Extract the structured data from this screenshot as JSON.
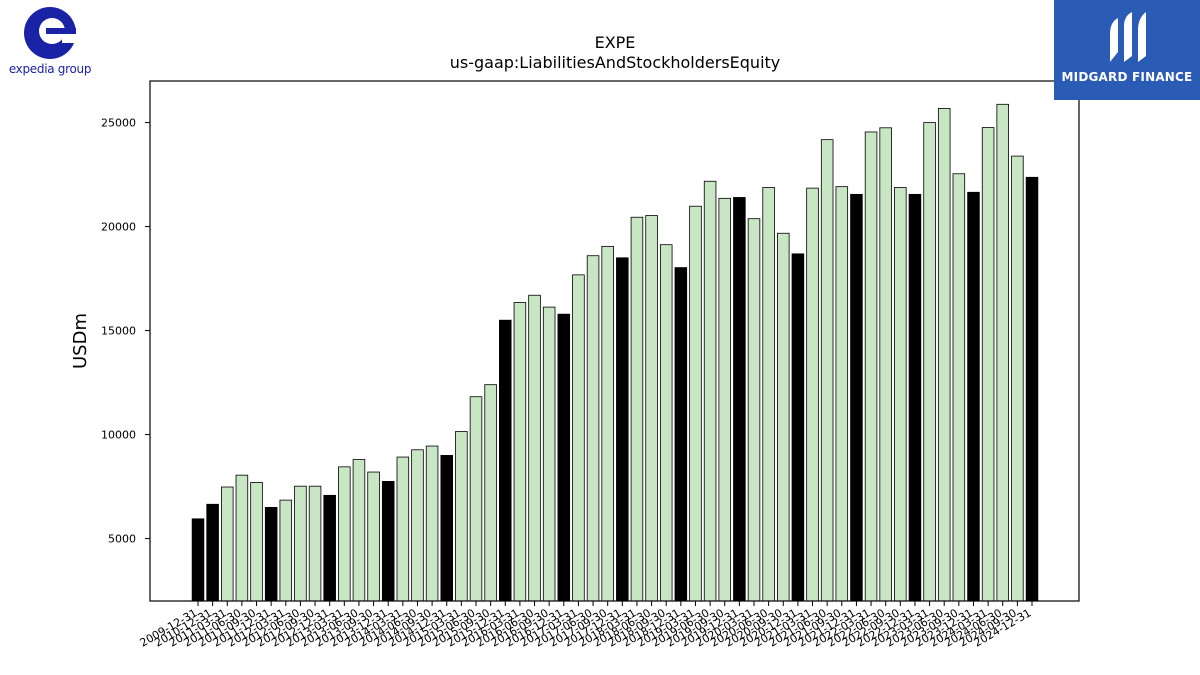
{
  "logos": {
    "left_text": "expedia group",
    "right_text": "MIDGARD FINANCE"
  },
  "colors": {
    "bar_light": "#c9e6c4",
    "bar_dark": "#000000",
    "expedia_blue": "#1a23a6",
    "midgard_bg": "#2a5bb5"
  },
  "chart_data": {
    "type": "bar",
    "title": "EXPE",
    "subtitle": "us-gaap:LiabilitiesAndStockholdersEquity",
    "xlabel": "",
    "ylabel": "USDm",
    "ylim": [
      2000,
      27000
    ],
    "yticks": [
      5000,
      10000,
      15000,
      20000,
      25000
    ],
    "grid": false,
    "categories": [
      "2009-12-31",
      "2010-12-31",
      "2011-03-31",
      "2011-06-30",
      "2011-09-30",
      "2011-12-31",
      "2012-03-31",
      "2012-06-30",
      "2012-09-30",
      "2012-12-31",
      "2013-03-31",
      "2013-06-30",
      "2013-09-30",
      "2013-12-31",
      "2014-03-31",
      "2014-06-30",
      "2014-09-30",
      "2014-12-31",
      "2015-03-31",
      "2015-06-30",
      "2015-09-30",
      "2015-12-31",
      "2016-03-31",
      "2016-06-30",
      "2016-09-30",
      "2016-12-31",
      "2017-03-31",
      "2017-06-30",
      "2017-09-30",
      "2017-12-31",
      "2018-03-31",
      "2018-06-30",
      "2018-09-30",
      "2018-12-31",
      "2019-03-31",
      "2019-06-30",
      "2019-09-30",
      "2019-12-31",
      "2020-03-31",
      "2020-06-30",
      "2020-09-30",
      "2020-12-31",
      "2021-03-31",
      "2021-06-30",
      "2021-09-30",
      "2021-12-31",
      "2022-03-31",
      "2022-06-30",
      "2022-09-30",
      "2022-12-31",
      "2023-03-31",
      "2023-06-30",
      "2023-09-30",
      "2023-12-31",
      "2024-03-31",
      "2024-06-30",
      "2024-09-30",
      "2024-12-31"
    ],
    "values": [
      5950,
      6650,
      7480,
      8050,
      7700,
      6500,
      6850,
      7520,
      7520,
      7080,
      8450,
      8800,
      8200,
      7750,
      8920,
      9270,
      9450,
      9000,
      10150,
      11820,
      12400,
      15500,
      16350,
      16700,
      16130,
      15790,
      17680,
      18600,
      19050,
      18500,
      20450,
      20530,
      19130,
      18030,
      20980,
      22180,
      21360,
      21400,
      20380,
      21880,
      19680,
      18690,
      21850,
      24180,
      21920,
      21550,
      24550,
      24750,
      21880,
      21550,
      25000,
      25680,
      22540,
      21650,
      24760,
      25880,
      23390,
      22370
    ],
    "highlight": [
      true,
      true,
      false,
      false,
      false,
      true,
      false,
      false,
      false,
      true,
      false,
      false,
      false,
      true,
      false,
      false,
      false,
      true,
      false,
      false,
      false,
      true,
      false,
      false,
      false,
      true,
      false,
      false,
      false,
      true,
      false,
      false,
      false,
      true,
      false,
      false,
      false,
      true,
      false,
      false,
      false,
      true,
      false,
      false,
      false,
      true,
      false,
      false,
      false,
      true,
      false,
      false,
      false,
      true,
      false,
      false,
      false,
      true
    ]
  }
}
